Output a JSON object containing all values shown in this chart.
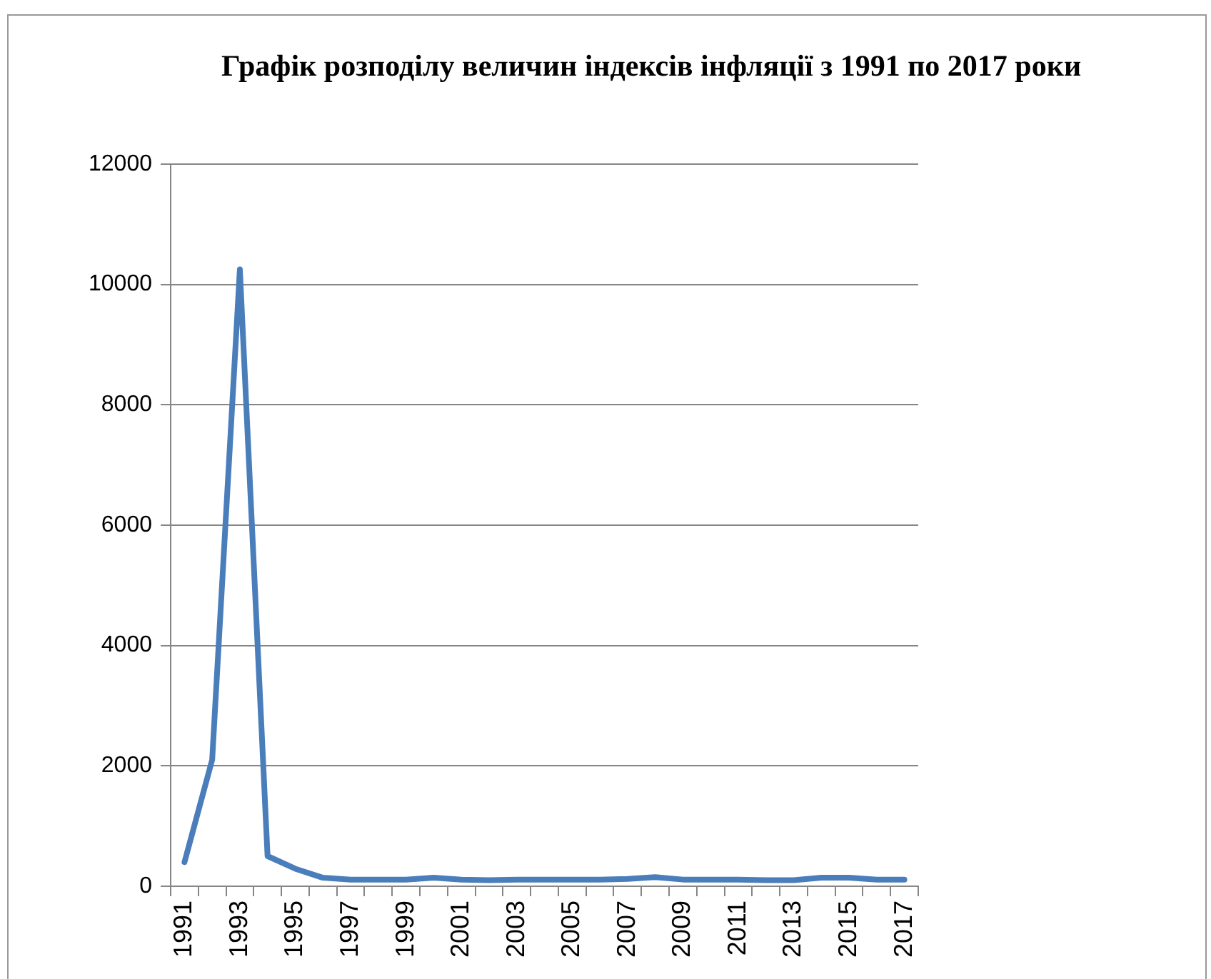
{
  "chart_data": {
    "type": "line",
    "title": "Графік розподілу величин індексів інфляції з 1991 по 2017 роки",
    "categories": [
      "1991",
      null,
      "1993",
      null,
      "1995",
      null,
      "1997",
      null,
      "1999",
      null,
      "2001",
      null,
      "2003",
      null,
      "2005",
      null,
      "2007",
      null,
      "2009",
      null,
      "2011",
      null,
      "2013",
      null,
      "2015",
      null,
      "2017"
    ],
    "series": [
      {
        "color": "#4a7ebb",
        "values": [
          400,
          2100,
          10250,
          500,
          290,
          140,
          110,
          110,
          110,
          140,
          110,
          100,
          110,
          110,
          110,
          110,
          120,
          150,
          110,
          110,
          110,
          100,
          100,
          140,
          140,
          110,
          110
        ]
      }
    ],
    "ylim": [
      0,
      12000
    ],
    "yticks": [
      0,
      2000,
      4000,
      6000,
      8000,
      10000,
      12000
    ],
    "grid": "y",
    "legend": false,
    "marker": "none",
    "line_style": "solid"
  }
}
